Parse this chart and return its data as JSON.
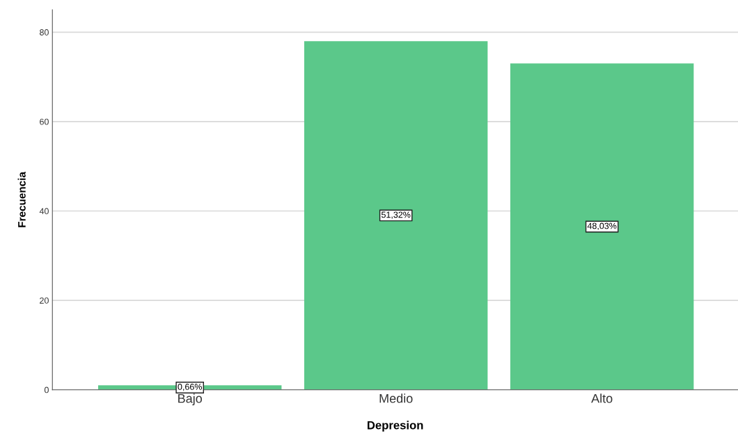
{
  "chart_data": {
    "type": "bar",
    "xlabel": "Depresion",
    "ylabel": "Frecuencia",
    "categories": [
      "Bajo",
      "Medio",
      "Alto"
    ],
    "values": [
      1,
      78,
      73
    ],
    "annotations": [
      "0,66%",
      "51,32%",
      "48,03%"
    ],
    "color": "#5bc88a",
    "ylim": [
      0,
      85
    ],
    "yticks": [
      0,
      20,
      40,
      60,
      80
    ],
    "grid": "y"
  }
}
